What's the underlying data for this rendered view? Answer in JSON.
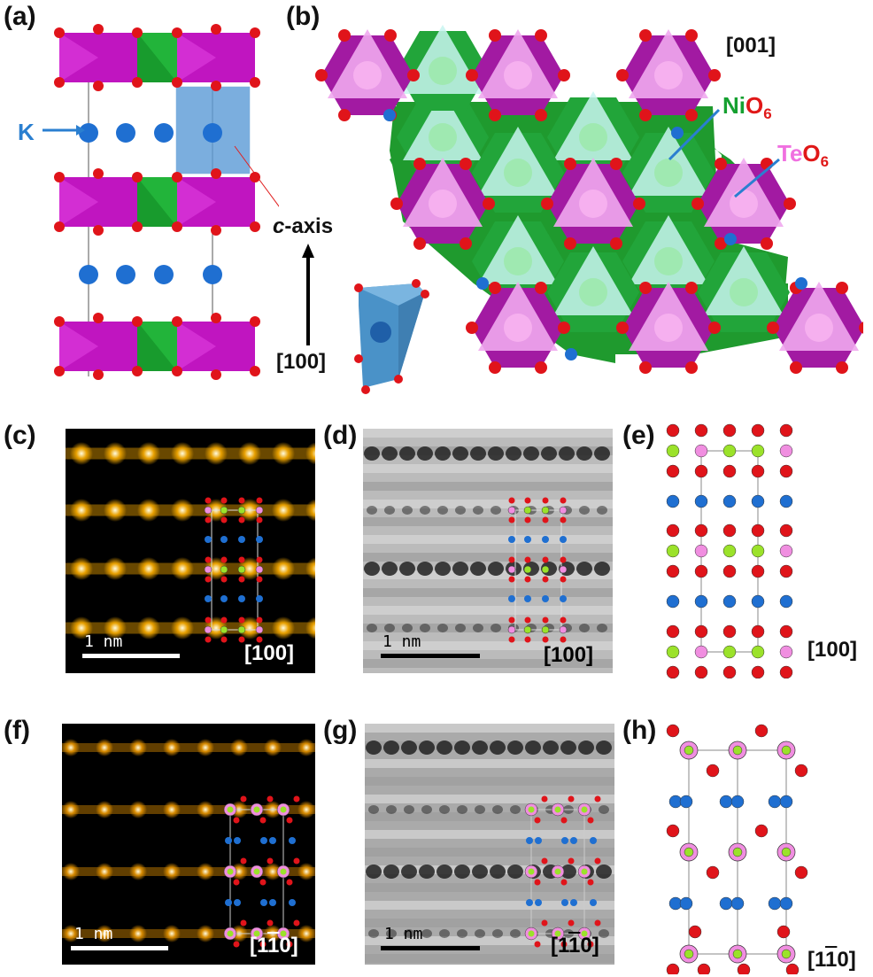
{
  "figure": {
    "labels": {
      "a": "(a)",
      "b": "(b)",
      "c": "(c)",
      "d": "(d)",
      "e": "(e)",
      "f": "(f)",
      "g": "(g)",
      "h": "(h)"
    },
    "panel_a": {
      "ion_label": "K",
      "axis_label_italic": "c",
      "axis_label_rest": "-axis",
      "direction": "[100]"
    },
    "panel_b": {
      "direction": "[001]",
      "nio6_ni": "Ni",
      "nio6_o": "O",
      "nio6_sub": "6",
      "teo6_te": "Te",
      "teo6_o": "O",
      "teo6_sub": "6"
    },
    "panel_c": {
      "scale": "1 nm",
      "direction": "[100]"
    },
    "panel_d": {
      "scale": "1 nm",
      "direction": "[100]"
    },
    "panel_e": {
      "direction": "[100]"
    },
    "panel_f": {
      "scale": "1 nm",
      "direction_pre": "[1",
      "direction_bar": "1",
      "direction_post": "0]"
    },
    "panel_g": {
      "scale": "1 nm",
      "direction_pre": "[1",
      "direction_bar": "1",
      "direction_post": "0]"
    },
    "panel_h": {
      "direction_pre": "[1",
      "direction_bar": "1",
      "direction_post": "0]"
    }
  },
  "colors": {
    "oxygen": "#e0141a",
    "potassium": "#1f6fd1",
    "tellurium_octahedron": "#c017c0",
    "nickel_octahedron": "#1f9a2e",
    "ni_atom": "#9be22a",
    "te_atom": "#f08ee0",
    "label_blue": "#2a7fd0",
    "label_green": "#15a030",
    "label_pink": "#f070e0",
    "label_red": "#e01818"
  }
}
